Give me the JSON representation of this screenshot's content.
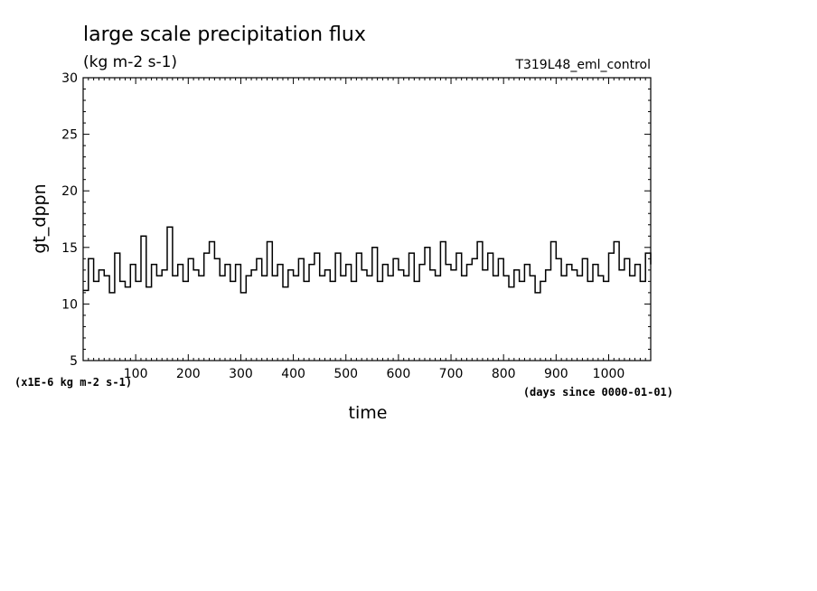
{
  "chart_data": {
    "type": "line",
    "title": "large scale precipitation flux",
    "subtitle": "(kg m-2 s-1)",
    "run_label": "T319L48_eml_control",
    "ylabel": "gt_dppn",
    "xlabel": "time",
    "y_unit_note": "(x1E-6 kg m-2 s-1)",
    "x_unit_note": "(days since 0000-01-01)",
    "xlim": [
      0,
      1080
    ],
    "ylim": [
      5,
      30
    ],
    "x_ticks": [
      100,
      200,
      300,
      400,
      500,
      600,
      700,
      800,
      900,
      1000
    ],
    "y_ticks": [
      5,
      10,
      15,
      20,
      25,
      30
    ],
    "grid": false,
    "legend": "none",
    "line_color": "#000000",
    "series": [
      {
        "x": [
          0,
          10,
          20,
          30,
          40,
          50,
          60,
          70,
          80,
          90,
          100,
          110,
          120,
          130,
          140,
          150,
          160,
          170,
          180,
          190,
          200,
          210,
          220,
          230,
          240,
          250,
          260,
          270,
          280,
          290,
          300,
          310,
          320,
          330,
          340,
          350,
          360,
          370,
          380,
          390,
          400,
          410,
          420,
          430,
          440,
          450,
          460,
          470,
          480,
          490,
          500,
          510,
          520,
          530,
          540,
          550,
          560,
          570,
          580,
          590,
          600,
          610,
          620,
          630,
          640,
          650,
          660,
          670,
          680,
          690,
          700,
          710,
          720,
          730,
          740,
          750,
          760,
          770,
          780,
          790,
          800,
          810,
          820,
          830,
          840,
          850,
          860,
          870,
          880,
          890,
          900,
          910,
          920,
          930,
          940,
          950,
          960,
          970,
          980,
          990,
          1000,
          1010,
          1020,
          1030,
          1040,
          1050,
          1060,
          1070,
          1080
        ],
        "values": [
          11.2,
          14.0,
          12.0,
          13.0,
          12.5,
          11.0,
          14.5,
          12.0,
          11.5,
          13.5,
          12.0,
          16.0,
          11.5,
          13.5,
          12.5,
          13.0,
          16.8,
          12.5,
          13.5,
          12.0,
          14.0,
          13.0,
          12.5,
          14.5,
          15.5,
          14.0,
          12.5,
          13.5,
          12.0,
          13.5,
          11.0,
          12.5,
          13.0,
          14.0,
          12.5,
          15.5,
          12.5,
          13.5,
          11.5,
          13.0,
          12.5,
          14.0,
          12.0,
          13.5,
          14.5,
          12.5,
          13.0,
          12.0,
          14.5,
          12.5,
          13.5,
          12.0,
          14.5,
          13.0,
          12.5,
          15.0,
          12.0,
          13.5,
          12.5,
          14.0,
          13.0,
          12.5,
          14.5,
          12.0,
          13.5,
          15.0,
          13.0,
          12.5,
          15.5,
          13.5,
          13.0,
          14.5,
          12.5,
          13.5,
          14.0,
          15.5,
          13.0,
          14.5,
          12.5,
          14.0,
          12.5,
          11.5,
          13.0,
          12.0,
          13.5,
          12.5,
          11.0,
          12.0,
          13.0,
          15.5,
          14.0,
          12.5,
          13.5,
          13.0,
          12.5,
          14.0,
          12.0,
          13.5,
          12.5,
          12.0,
          14.5,
          15.5,
          13.0,
          14.0,
          12.5,
          13.5,
          12.0,
          14.5,
          13.5
        ]
      }
    ]
  }
}
